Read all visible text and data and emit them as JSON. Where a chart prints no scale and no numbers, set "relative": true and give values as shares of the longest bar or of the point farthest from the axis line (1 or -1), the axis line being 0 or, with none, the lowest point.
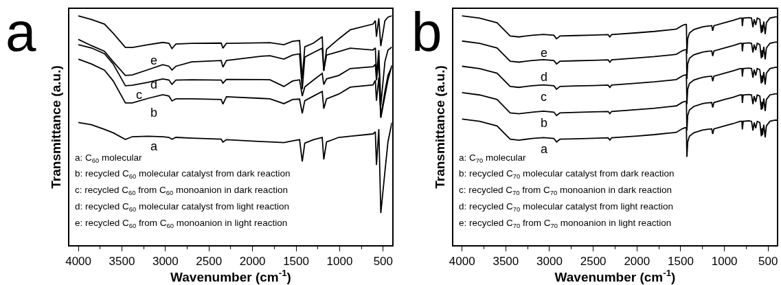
{
  "chart_data": [
    {
      "type": "line",
      "relative": true,
      "xlabel": "Wavenumber (cm$^{-1}$)",
      "ylabel": "Transmittance (a.u.)",
      "tick_labels": "x",
      "xlim": [
        4100,
        400
      ],
      "xticks": [
        4000,
        {
          "value": 3750,
          "label": null
        },
        3500,
        {
          "value": 3250,
          "label": null
        },
        3000,
        {
          "value": 2750,
          "label": null
        },
        2500,
        {
          "value": 2250,
          "label": null
        },
        2000,
        {
          "value": 1750,
          "label": null
        },
        1500,
        {
          "value": 1250,
          "label": null
        },
        1000,
        {
          "value": 750,
          "label": null
        },
        500
      ],
      "x": [
        4000,
        3850,
        3700,
        3600,
        3460,
        3380,
        3200,
        3030,
        2960,
        2925,
        2880,
        2700,
        2360,
        2340,
        2300,
        1900,
        1800,
        1640,
        1540,
        1460,
        1429,
        1400,
        1300,
        1200,
        1182,
        1150,
        1009,
        878,
        616,
        590,
        577,
        550,
        527,
        480,
        445,
        400
      ],
      "series": [
        {
          "color": "#000000",
          "values": [
            0.535,
            0.525,
            0.505,
            0.49,
            0.461,
            0.473,
            0.475,
            0.473,
            0.47,
            0.462,
            0.47,
            0.467,
            0.462,
            0.449,
            0.46,
            0.452,
            0.45,
            0.447,
            0.455,
            0.46,
            0.365,
            0.445,
            0.46,
            0.47,
            0.374,
            0.45,
            0.47,
            0.475,
            0.485,
            0.494,
            0.35,
            0.506,
            0.14,
            0.32,
            0.45,
            0.535
          ]
        },
        {
          "color": "#000000",
          "values": [
            0.811,
            0.79,
            0.763,
            0.716,
            0.62,
            0.62,
            0.64,
            0.656,
            0.65,
            0.629,
            0.638,
            0.638,
            0.635,
            0.615,
            0.647,
            0.64,
            0.638,
            0.617,
            0.635,
            0.637,
            0.575,
            0.63,
            0.65,
            0.67,
            0.595,
            0.638,
            0.659,
            0.689,
            0.699,
            0.719,
            0.63,
            0.73,
            0.555,
            0.65,
            0.72,
            0.785
          ]
        },
        {
          "color": "#000000",
          "values": [
            0.874,
            0.86,
            0.835,
            0.79,
            0.695,
            0.697,
            0.71,
            0.725,
            0.72,
            0.701,
            0.72,
            0.721,
            0.72,
            0.706,
            0.723,
            0.722,
            0.721,
            0.692,
            0.716,
            0.721,
            0.65,
            0.69,
            0.72,
            0.749,
            0.7,
            0.725,
            0.74,
            0.77,
            0.778,
            0.788,
            0.719,
            0.808,
            0.56,
            0.67,
            0.74,
            0.778
          ]
        },
        {
          "color": "#000000",
          "values": [
            0.897,
            0.87,
            0.845,
            0.8,
            0.74,
            0.742,
            0.765,
            0.787,
            0.78,
            0.764,
            0.78,
            0.799,
            0.805,
            0.776,
            0.805,
            0.824,
            0.826,
            0.811,
            0.829,
            0.834,
            0.68,
            0.82,
            0.84,
            0.859,
            0.76,
            0.829,
            0.844,
            0.859,
            0.851,
            0.86,
            0.739,
            0.85,
            0.61,
            0.8,
            0.85,
            0.864
          ]
        },
        {
          "color": "#000000",
          "values": [
            1.0,
            0.984,
            0.964,
            0.924,
            0.862,
            0.862,
            0.874,
            0.884,
            0.88,
            0.857,
            0.877,
            0.88,
            0.881,
            0.859,
            0.88,
            0.882,
            0.883,
            0.874,
            0.889,
            0.892,
            0.725,
            0.865,
            0.881,
            0.909,
            0.76,
            0.854,
            0.9,
            0.939,
            0.964,
            0.979,
            0.909,
            0.989,
            0.868,
            0.979,
            0.994,
            1.0
          ]
        }
      ],
      "annotations": [
        "a",
        "e",
        "d",
        "c",
        "b",
        "a",
        "a: C$_{60}$ molecular",
        "b: recycled C$_{60}$ molecular catalyst from dark reaction",
        "c: recycled C$_{60}$ from C$_{60}$ monoanion in dark reaction",
        "d: recycled C$_{60}$ molecular catalyst from light reaction",
        "e: recycled C$_{60}$ from C$_{60}$ monoanion in light reaction"
      ]
    },
    {
      "type": "line",
      "relative": true,
      "xlabel": "Wavenumber (cm$^{-1}$)",
      "ylabel": "Transmittance (a.u.)",
      "tick_labels": "x",
      "xlim": [
        4100,
        400
      ],
      "xticks": [
        4000,
        {
          "value": 3750,
          "label": null
        },
        3500,
        {
          "value": 3250,
          "label": null
        },
        3000,
        {
          "value": 2750,
          "label": null
        },
        2500,
        {
          "value": 2250,
          "label": null
        },
        2000,
        {
          "value": 1750,
          "label": null
        },
        1500,
        {
          "value": 1250,
          "label": null
        },
        1000,
        {
          "value": 750,
          "label": null
        },
        500
      ],
      "x": [
        4000,
        3800,
        3600,
        3450,
        3350,
        3200,
        3070,
        2950,
        2920,
        2880,
        2700,
        2500,
        2330,
        2310,
        2290,
        2000,
        1800,
        1600,
        1550,
        1480,
        1450,
        1435,
        1429,
        1420,
        1400,
        1350,
        1250,
        1200,
        1145,
        1134,
        1120,
        1000,
        900,
        820,
        800,
        795,
        785,
        720,
        690,
        674,
        660,
        642,
        625,
        595,
        578,
        570,
        565,
        550,
        534,
        520,
        480,
        420,
        400
      ],
      "series": [
        {
          "color": "#000000",
          "values": [
            0.55,
            0.54,
            0.52,
            0.462,
            0.458,
            0.465,
            0.469,
            0.465,
            0.45,
            0.462,
            0.464,
            0.466,
            0.468,
            0.458,
            0.468,
            0.476,
            0.482,
            0.49,
            0.492,
            0.508,
            0.512,
            0.512,
            0.385,
            0.45,
            0.475,
            0.49,
            0.502,
            0.505,
            0.507,
            0.485,
            0.507,
            0.52,
            0.53,
            0.54,
            0.54,
            0.505,
            0.54,
            0.542,
            0.54,
            0.5,
            0.535,
            0.51,
            0.54,
            0.535,
            0.475,
            0.51,
            0.48,
            0.525,
            0.47,
            0.52,
            0.54,
            0.545,
            0.545
          ]
        },
        {
          "color": "#000000",
          "values": [
            0.665,
            0.655,
            0.635,
            0.577,
            0.573,
            0.58,
            0.584,
            0.58,
            0.565,
            0.577,
            0.579,
            0.581,
            0.583,
            0.573,
            0.583,
            0.591,
            0.597,
            0.605,
            0.607,
            0.623,
            0.627,
            0.627,
            0.5,
            0.565,
            0.59,
            0.605,
            0.617,
            0.62,
            0.622,
            0.6,
            0.622,
            0.635,
            0.645,
            0.655,
            0.655,
            0.62,
            0.655,
            0.657,
            0.655,
            0.615,
            0.65,
            0.625,
            0.655,
            0.65,
            0.59,
            0.625,
            0.595,
            0.64,
            0.585,
            0.635,
            0.655,
            0.66,
            0.66
          ]
        },
        {
          "color": "#000000",
          "values": [
            0.78,
            0.77,
            0.75,
            0.692,
            0.688,
            0.695,
            0.699,
            0.695,
            0.68,
            0.692,
            0.694,
            0.696,
            0.698,
            0.688,
            0.698,
            0.706,
            0.712,
            0.72,
            0.722,
            0.738,
            0.742,
            0.742,
            0.615,
            0.68,
            0.705,
            0.72,
            0.732,
            0.735,
            0.737,
            0.715,
            0.737,
            0.75,
            0.76,
            0.77,
            0.77,
            0.735,
            0.77,
            0.772,
            0.77,
            0.73,
            0.765,
            0.74,
            0.77,
            0.765,
            0.705,
            0.74,
            0.71,
            0.755,
            0.7,
            0.75,
            0.77,
            0.775,
            0.775
          ]
        },
        {
          "color": "#000000",
          "values": [
            0.89,
            0.88,
            0.86,
            0.802,
            0.798,
            0.805,
            0.809,
            0.805,
            0.79,
            0.802,
            0.804,
            0.806,
            0.808,
            0.798,
            0.808,
            0.816,
            0.822,
            0.83,
            0.832,
            0.848,
            0.852,
            0.852,
            0.725,
            0.79,
            0.815,
            0.83,
            0.842,
            0.845,
            0.847,
            0.825,
            0.847,
            0.86,
            0.87,
            0.88,
            0.88,
            0.845,
            0.88,
            0.882,
            0.88,
            0.84,
            0.875,
            0.85,
            0.88,
            0.875,
            0.815,
            0.85,
            0.82,
            0.865,
            0.81,
            0.86,
            0.88,
            0.885,
            0.885
          ]
        },
        {
          "color": "#000000",
          "values": [
            1.0,
            0.99,
            0.97,
            0.912,
            0.908,
            0.915,
            0.919,
            0.915,
            0.9,
            0.912,
            0.914,
            0.916,
            0.918,
            0.908,
            0.918,
            0.926,
            0.932,
            0.94,
            0.942,
            0.958,
            0.962,
            0.962,
            0.835,
            0.9,
            0.925,
            0.94,
            0.952,
            0.955,
            0.957,
            0.935,
            0.957,
            0.97,
            0.98,
            0.99,
            0.99,
            0.955,
            0.99,
            0.992,
            0.99,
            0.95,
            0.985,
            0.96,
            0.99,
            0.985,
            0.925,
            0.96,
            0.93,
            0.975,
            0.92,
            0.97,
            0.99,
            0.995,
            0.995
          ]
        }
      ],
      "annotations": [
        "b",
        "e",
        "d",
        "c",
        "b",
        "a",
        "a: C$_{70}$ molecular",
        "b: recycled C$_{70}$ molecular catalyst from dark reaction",
        "c: recycled C$_{70}$ from C$_{70}$ monoanion in dark reaction",
        "d: recycled C$_{70}$ molecular catalyst from light reaction",
        "e: recycled C$_{70}$ from C$_{70}$ monoanion in light reaction"
      ]
    }
  ]
}
